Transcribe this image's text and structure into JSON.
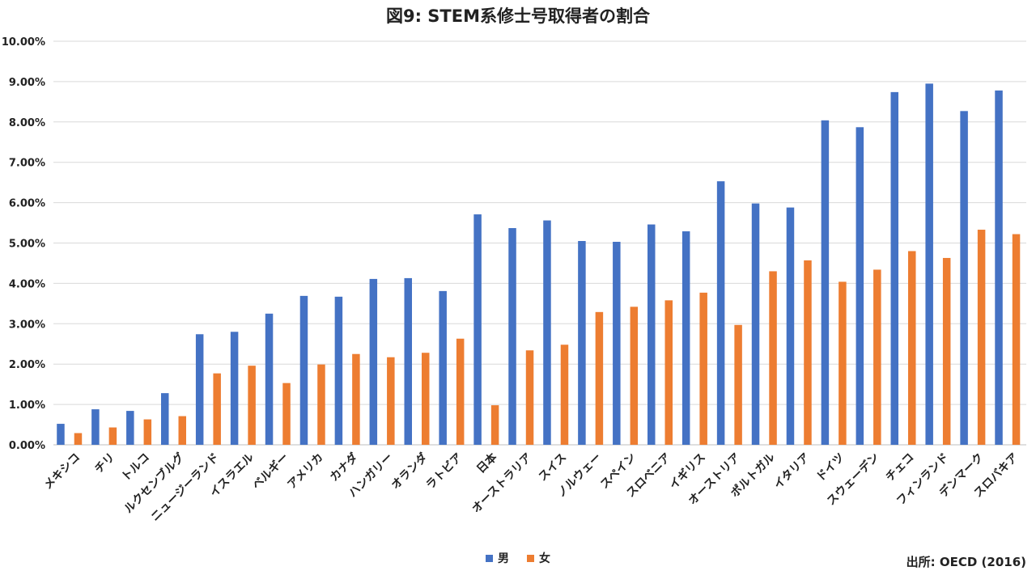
{
  "chart_data": {
    "type": "bar",
    "title": "図9: STEM系修士号取得者の割合",
    "categories": [
      "メキシコ",
      "チリ",
      "トルコ",
      "ルクセンブルグ",
      "ニュージーランド",
      "イスラエル",
      "ベルギー",
      "アメリカ",
      "カナダ",
      "ハンガリー",
      "オランダ",
      "ラトビア",
      "日本",
      "オーストラリア",
      "スイス",
      "ノルウェー",
      "スペイン",
      "スロベニア",
      "イギリス",
      "オーストリア",
      "ポルトガル",
      "イタリア",
      "ドイツ",
      "スウェーデン",
      "チェコ",
      "フィンランド",
      "デンマーク",
      "スロバキア"
    ],
    "series": [
      {
        "name": "男",
        "color": "#4472C4",
        "values": [
          0.52,
          0.88,
          0.84,
          1.28,
          2.74,
          2.8,
          3.25,
          3.69,
          3.67,
          4.11,
          4.13,
          3.81,
          5.71,
          5.37,
          5.56,
          5.05,
          5.03,
          5.46,
          5.29,
          6.53,
          5.98,
          5.88,
          8.04,
          7.87,
          8.74,
          8.95,
          8.27,
          8.78
        ]
      },
      {
        "name": "女",
        "color": "#ED7D31",
        "values": [
          0.29,
          0.43,
          0.63,
          0.71,
          1.77,
          1.96,
          1.53,
          1.99,
          2.25,
          2.17,
          2.28,
          2.63,
          0.98,
          2.34,
          2.48,
          3.29,
          3.42,
          3.58,
          3.77,
          2.97,
          4.3,
          4.57,
          4.04,
          4.34,
          4.8,
          4.63,
          5.33,
          5.22
        ]
      }
    ],
    "ylim": [
      0,
      10
    ],
    "yticks": [
      "0.00%",
      "1.00%",
      "2.00%",
      "3.00%",
      "4.00%",
      "5.00%",
      "6.00%",
      "7.00%",
      "8.00%",
      "9.00%",
      "10.00%"
    ],
    "grid": true,
    "legend_position": "bottom"
  },
  "source": "出所: OECD (2016)"
}
